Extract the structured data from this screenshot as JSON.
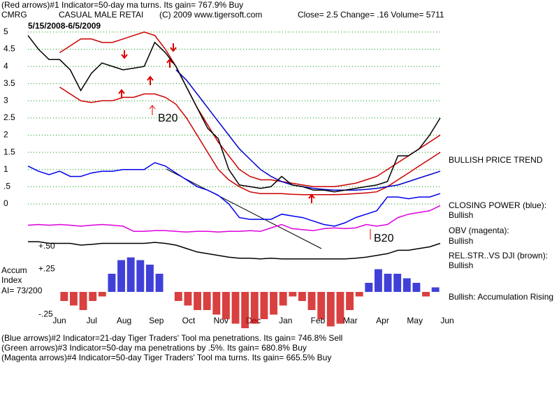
{
  "header": {
    "line1": "(Red arrows)#1 Indicator=50-day ma turns. Its gain= 767.9% Buy",
    "ticker": "CMRG",
    "company": "CASUAL MALE RETAI",
    "copyright": "(C) 2009 www.tigersoft.com",
    "quote": "Close=  2.5  Change= .16 Volume=  5711",
    "date_range": "5/15/2008-6/5/2009"
  },
  "notes": {
    "b20_a": "B20",
    "b20_b": "B20",
    "price_trend": "BULLISH PRICE TREND",
    "closing_power": "CLOSING POWER (blue):",
    "closing_power_state": "Bullish",
    "obv": "OBV (magenta):",
    "obv_state": "Bullish",
    "relstr": "REL.STR..VS DJI (brown):",
    "relstr_state": "Bullish",
    "accum_state": "Bullish: Accumulation Rising",
    "accum_1": "Accum",
    "accum_2": "Index",
    "accum_3": "AI= 73/200"
  },
  "footer": [
    "(Blue arrows)#2 Indicator=21-day Tiger Traders' Tool ma penetrations. Its gain= 746.8% Sell",
    "(Green arrows)#3 Indicator=50-day ma penetrations by .5%. Its gain= 680.8% Buy",
    "(Magenta arrows)#4 Indicator=50-day Tiger Traders' Tool ma turns. Its gain= 665.5% Buy"
  ],
  "chart_data": [
    {
      "type": "line",
      "grid": true,
      "grid_color": "#009900",
      "ylim": [
        -1.7,
        5.1
      ],
      "yticks": [
        5,
        4.5,
        4,
        3.5,
        3,
        2.5,
        2,
        1.5,
        1,
        {
          "value": 0.5,
          "label": ".5"
        },
        0
      ],
      "months": [
        "Jun",
        "Jul",
        "Aug",
        "Sep",
        "Oct",
        "Nov",
        "Dec",
        "Jan",
        "Feb",
        "Mar",
        "Apr",
        "May",
        "Jun"
      ],
      "series": [
        {
          "color": "#cc0000",
          "values": [
            null,
            null,
            null,
            4.4,
            4.6,
            4.8,
            4.8,
            4.7,
            4.7,
            4.8,
            4.9,
            5.0,
            4.9,
            4.5,
            4.0,
            3.4,
            2.8,
            2.3,
            1.8,
            1.4,
            1.0,
            0.8,
            0.7,
            0.7,
            0.65,
            0.6,
            0.55,
            0.5,
            0.5,
            0.5,
            0.55,
            0.6,
            0.7,
            0.8,
            1.0,
            1.2,
            1.4,
            1.6,
            1.8,
            2.0
          ]
        },
        {
          "color": "#cc0000",
          "values": [
            null,
            null,
            null,
            3.4,
            3.2,
            3.0,
            2.95,
            3.0,
            3.0,
            3.1,
            3.1,
            3.2,
            3.2,
            3.1,
            2.9,
            2.5,
            2.0,
            1.5,
            1.0,
            0.7,
            0.5,
            0.35,
            0.3,
            0.3,
            0.3,
            0.28,
            0.27,
            0.27,
            0.27,
            0.27,
            0.28,
            0.3,
            0.32,
            0.35,
            0.5,
            0.7,
            0.9,
            1.1,
            1.3,
            1.5
          ]
        },
        {
          "color": "#0000cc",
          "values": [
            null,
            null,
            null,
            null,
            null,
            null,
            null,
            null,
            null,
            null,
            null,
            null,
            null,
            null,
            3.9,
            3.6,
            3.2,
            2.8,
            2.4,
            2.0,
            1.6,
            1.3,
            1.0,
            0.8,
            0.65,
            0.55,
            0.5,
            0.45,
            0.42,
            0.4,
            0.4,
            0.4,
            0.42,
            0.45,
            0.5,
            0.55,
            0.65,
            0.75,
            0.85,
            0.95
          ]
        },
        {
          "color": "#000000",
          "values": [
            4.9,
            4.5,
            4.2,
            4.2,
            3.9,
            3.3,
            3.8,
            4.1,
            4.0,
            3.9,
            3.95,
            4.0,
            4.7,
            4.4,
            4.0,
            3.4,
            2.8,
            2.2,
            1.9,
            1.0,
            0.55,
            0.5,
            0.45,
            0.5,
            0.8,
            0.55,
            0.5,
            0.4,
            0.4,
            0.35,
            0.4,
            0.45,
            0.5,
            0.55,
            0.65,
            1.4,
            1.4,
            1.6,
            2.0,
            2.5
          ]
        },
        {
          "color": "#0000ee",
          "values": [
            1.1,
            0.95,
            0.85,
            0.95,
            0.8,
            0.8,
            0.9,
            0.95,
            0.95,
            1.0,
            1.0,
            1.0,
            1.2,
            1.1,
            0.9,
            0.7,
            0.5,
            0.4,
            0.25,
            0.0,
            -0.4,
            -0.45,
            -0.45,
            -0.45,
            -0.3,
            -0.35,
            -0.4,
            -0.5,
            -0.6,
            -0.65,
            -0.55,
            -0.4,
            -0.3,
            -0.2,
            0.2,
            0.2,
            0.15,
            0.2,
            0.2,
            0.3
          ]
        },
        {
          "color": "#dd00dd",
          "values": [
            -0.62,
            -0.6,
            -0.62,
            -0.6,
            -0.62,
            -0.65,
            -0.62,
            -0.6,
            -0.62,
            -0.65,
            -0.8,
            -0.8,
            -0.78,
            -0.78,
            -0.8,
            -0.82,
            -0.8,
            -0.8,
            -0.82,
            -0.8,
            -0.8,
            -0.78,
            -0.8,
            -0.7,
            -0.6,
            -0.72,
            -0.75,
            -0.78,
            -0.72,
            -0.7,
            -0.72,
            -0.7,
            -0.6,
            -0.65,
            -0.6,
            -0.4,
            -0.3,
            -0.25,
            -0.2,
            -0.05
          ]
        },
        {
          "color": "#000000",
          "values": [
            -1.1,
            -1.1,
            -1.15,
            -1.15,
            -1.15,
            -1.2,
            -1.18,
            -1.15,
            -1.15,
            -1.15,
            -1.15,
            -1.15,
            -1.12,
            -1.15,
            -1.2,
            -1.3,
            -1.4,
            -1.45,
            -1.5,
            -1.55,
            -1.58,
            -1.58,
            -1.6,
            -1.58,
            -1.6,
            -1.6,
            -1.6,
            -1.6,
            -1.6,
            -1.6,
            -1.6,
            -1.58,
            -1.55,
            -1.5,
            -1.45,
            -1.35,
            -1.35,
            -1.3,
            -1.25,
            -1.15
          ]
        }
      ]
    },
    {
      "type": "bar",
      "pos_color": "#0000cc",
      "neg_color": "#cc0000",
      "ylim": [
        -0.42,
        0.5
      ],
      "yticks": [
        {
          "value": 0.5,
          "label": "+.50"
        },
        {
          "value": 0.25,
          "label": "+.25"
        },
        {
          "value": -0.25,
          "label": "-.25"
        }
      ],
      "values": [
        -0.1,
        -0.15,
        -0.2,
        -0.1,
        -0.05,
        0.2,
        0.35,
        0.38,
        0.35,
        0.3,
        0.2,
        0.0,
        -0.1,
        -0.15,
        -0.2,
        -0.2,
        -0.25,
        -0.3,
        -0.35,
        -0.4,
        -0.35,
        -0.3,
        -0.25,
        -0.15,
        -0.05,
        -0.1,
        -0.2,
        -0.3,
        -0.38,
        -0.35,
        -0.2,
        -0.05,
        0.1,
        0.25,
        0.2,
        0.2,
        0.15,
        0.1,
        -0.05,
        0.05
      ]
    }
  ]
}
